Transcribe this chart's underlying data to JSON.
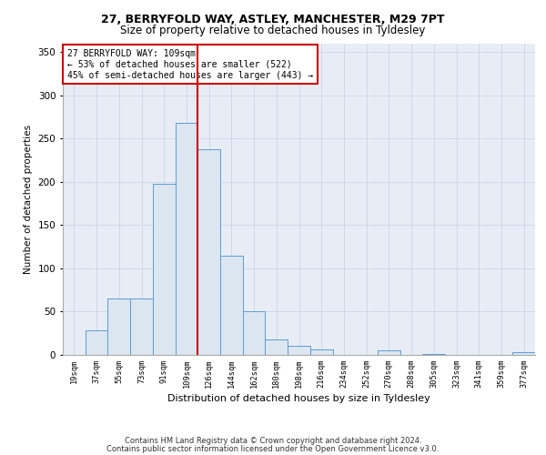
{
  "title1": "27, BERRYFOLD WAY, ASTLEY, MANCHESTER, M29 7PT",
  "title2": "Size of property relative to detached houses in Tyldesley",
  "xlabel": "Distribution of detached houses by size in Tyldesley",
  "ylabel": "Number of detached properties",
  "footnote1": "Contains HM Land Registry data © Crown copyright and database right 2024.",
  "footnote2": "Contains public sector information licensed under the Open Government Licence v3.0.",
  "annotation_line1": "27 BERRYFOLD WAY: 109sqm",
  "annotation_line2": "← 53% of detached houses are smaller (522)",
  "annotation_line3": "45% of semi-detached houses are larger (443) →",
  "bar_edge_color": "#5b9bd5",
  "bar_face_color": "#dce6f1",
  "grid_color": "#c8d4e8",
  "background_color": "#e8edf5",
  "vline_color": "#cc0000",
  "annotation_box_edge": "#cc0000",
  "categories": [
    "19sqm",
    "37sqm",
    "55sqm",
    "73sqm",
    "91sqm",
    "109sqm",
    "126sqm",
    "144sqm",
    "162sqm",
    "180sqm",
    "198sqm",
    "216sqm",
    "234sqm",
    "252sqm",
    "270sqm",
    "288sqm",
    "305sqm",
    "323sqm",
    "341sqm",
    "359sqm",
    "377sqm"
  ],
  "values": [
    0,
    28,
    65,
    65,
    198,
    268,
    238,
    115,
    50,
    18,
    10,
    6,
    0,
    0,
    5,
    0,
    1,
    0,
    0,
    0,
    3
  ],
  "ylim": [
    0,
    360
  ],
  "yticks": [
    0,
    50,
    100,
    150,
    200,
    250,
    300,
    350
  ],
  "property_idx": 5,
  "vline_x": 5
}
